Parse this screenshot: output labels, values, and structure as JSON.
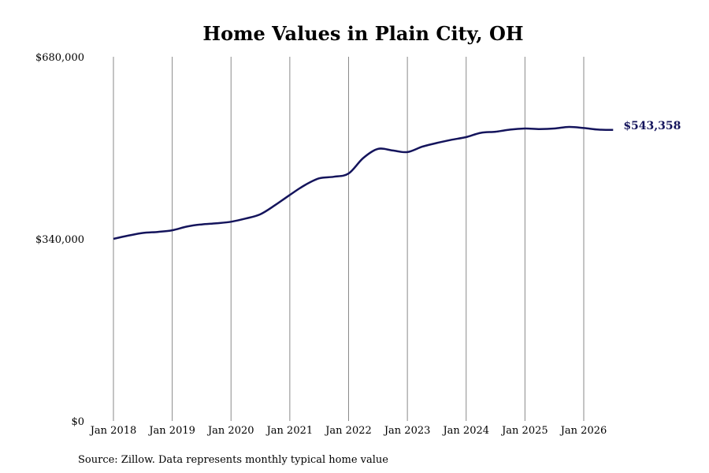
{
  "chart_data": {
    "type": "line",
    "title": "Home Values in Plain City, OH",
    "xlabel": "",
    "ylabel": "",
    "ylim": [
      0,
      680000
    ],
    "yticks": [
      {
        "value": 0,
        "label": "$0"
      },
      {
        "value": 340000,
        "label": "$340,000"
      },
      {
        "value": 680000,
        "label": "$680,000"
      }
    ],
    "xticks": [
      {
        "value": 2018.0,
        "label": "Jan 2018"
      },
      {
        "value": 2019.0,
        "label": "Jan 2019"
      },
      {
        "value": 2020.0,
        "label": "Jan 2020"
      },
      {
        "value": 2021.0,
        "label": "Jan 2021"
      },
      {
        "value": 2022.0,
        "label": "Jan 2022"
      },
      {
        "value": 2023.0,
        "label": "Jan 2023"
      },
      {
        "value": 2024.0,
        "label": "Jan 2024"
      },
      {
        "value": 2025.0,
        "label": "Jan 2025"
      },
      {
        "value": 2026.0,
        "label": "Jan 2026"
      }
    ],
    "xlim": [
      2017.75,
      2026.9
    ],
    "grid": {
      "vertical": true,
      "horizontal": false
    },
    "series": [
      {
        "color": "#14145c",
        "x": [
          2018.0,
          2018.25,
          2018.5,
          2018.75,
          2019.0,
          2019.25,
          2019.5,
          2019.75,
          2020.0,
          2020.25,
          2020.5,
          2020.75,
          2021.0,
          2021.25,
          2021.5,
          2021.75,
          2022.0,
          2022.25,
          2022.5,
          2022.75,
          2023.0,
          2023.25,
          2023.5,
          2023.75,
          2024.0,
          2024.25,
          2024.5,
          2024.75,
          2025.0,
          2025.25,
          2025.5,
          2025.75,
          2026.0,
          2026.25,
          2026.5
        ],
        "y": [
          340000,
          346000,
          351000,
          353000,
          356000,
          363000,
          367000,
          369000,
          372000,
          378000,
          386000,
          403000,
          422000,
          440000,
          453000,
          456000,
          462000,
          491000,
          508000,
          505000,
          502000,
          512000,
          519000,
          525000,
          530000,
          538000,
          540000,
          544000,
          546000,
          545000,
          546000,
          549000,
          547000,
          544000,
          543358
        ]
      }
    ],
    "end_label": "$543,358",
    "source_note": "Source: Zillow. Data represents monthly typical home value"
  }
}
